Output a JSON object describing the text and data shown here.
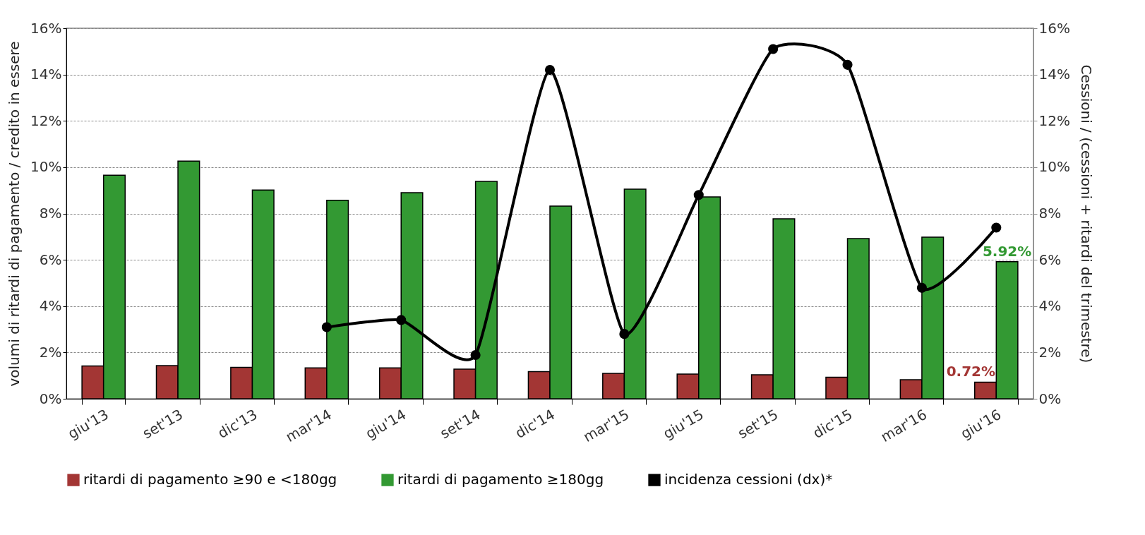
{
  "chart_data": {
    "type": "bar",
    "ylabel": "volumi di ritardi di pagamento / credito in essere",
    "y2label": "Cessioni / (cessioni + ritardi del trimestre)",
    "categories": [
      "giu'13",
      "set'13",
      "dic'13",
      "mar'14",
      "giu'14",
      "set'14",
      "dic'14",
      "mar'15",
      "giu'15",
      "set'15",
      "dic'15",
      "mar'16",
      "giu'16"
    ],
    "series": [
      {
        "name": "ritardi di pagamento ≥90 e <180gg",
        "color": "#a33634",
        "values": [
          1.42,
          1.43,
          1.36,
          1.33,
          1.33,
          1.28,
          1.17,
          1.1,
          1.07,
          1.04,
          0.93,
          0.82,
          0.72
        ],
        "value_labels": [
          null,
          null,
          null,
          null,
          null,
          null,
          null,
          null,
          null,
          null,
          null,
          null,
          "0.72%"
        ]
      },
      {
        "name": "ritardi di pagamento ≥180gg",
        "color": "#339933",
        "values": [
          9.65,
          10.26,
          9.01,
          8.57,
          8.9,
          9.39,
          8.32,
          9.05,
          8.72,
          7.77,
          6.92,
          6.98,
          5.92
        ],
        "value_labels": [
          null,
          null,
          null,
          null,
          null,
          null,
          null,
          null,
          null,
          null,
          null,
          null,
          "5.92%"
        ]
      },
      {
        "name": "incidenza cessioni (dx)*",
        "type": "line",
        "axis": "y2",
        "color": "#000000",
        "values": [
          null,
          null,
          null,
          3.09,
          3.4,
          1.89,
          14.2,
          2.8,
          8.8,
          15.1,
          14.42,
          4.79,
          7.39
        ]
      }
    ],
    "ylim": [
      0,
      16
    ],
    "yticks": [
      {
        "value": 0,
        "label": "0%"
      },
      {
        "value": 2,
        "label": "2%"
      },
      {
        "value": 4,
        "label": "4%"
      },
      {
        "value": 6,
        "label": "6%"
      },
      {
        "value": 8,
        "label": "8%"
      },
      {
        "value": 10,
        "label": "10%"
      },
      {
        "value": 12,
        "label": "12%"
      },
      {
        "value": 14,
        "label": "14%"
      },
      {
        "value": 16,
        "label": "16%"
      }
    ],
    "y2lim": [
      0,
      16
    ],
    "y2ticks": [
      {
        "value": 0,
        "label": "0%"
      },
      {
        "value": 2,
        "label": "2%"
      },
      {
        "value": 4,
        "label": "4%"
      },
      {
        "value": 6,
        "label": "6%"
      },
      {
        "value": 8,
        "label": "8%"
      },
      {
        "value": 10,
        "label": "10%"
      },
      {
        "value": 12,
        "label": "12%"
      },
      {
        "value": 14,
        "label": "14%"
      },
      {
        "value": 16,
        "label": "16%"
      }
    ],
    "grid": "y",
    "legend": "bottom",
    "marker": "circle",
    "line_style": "solid"
  }
}
